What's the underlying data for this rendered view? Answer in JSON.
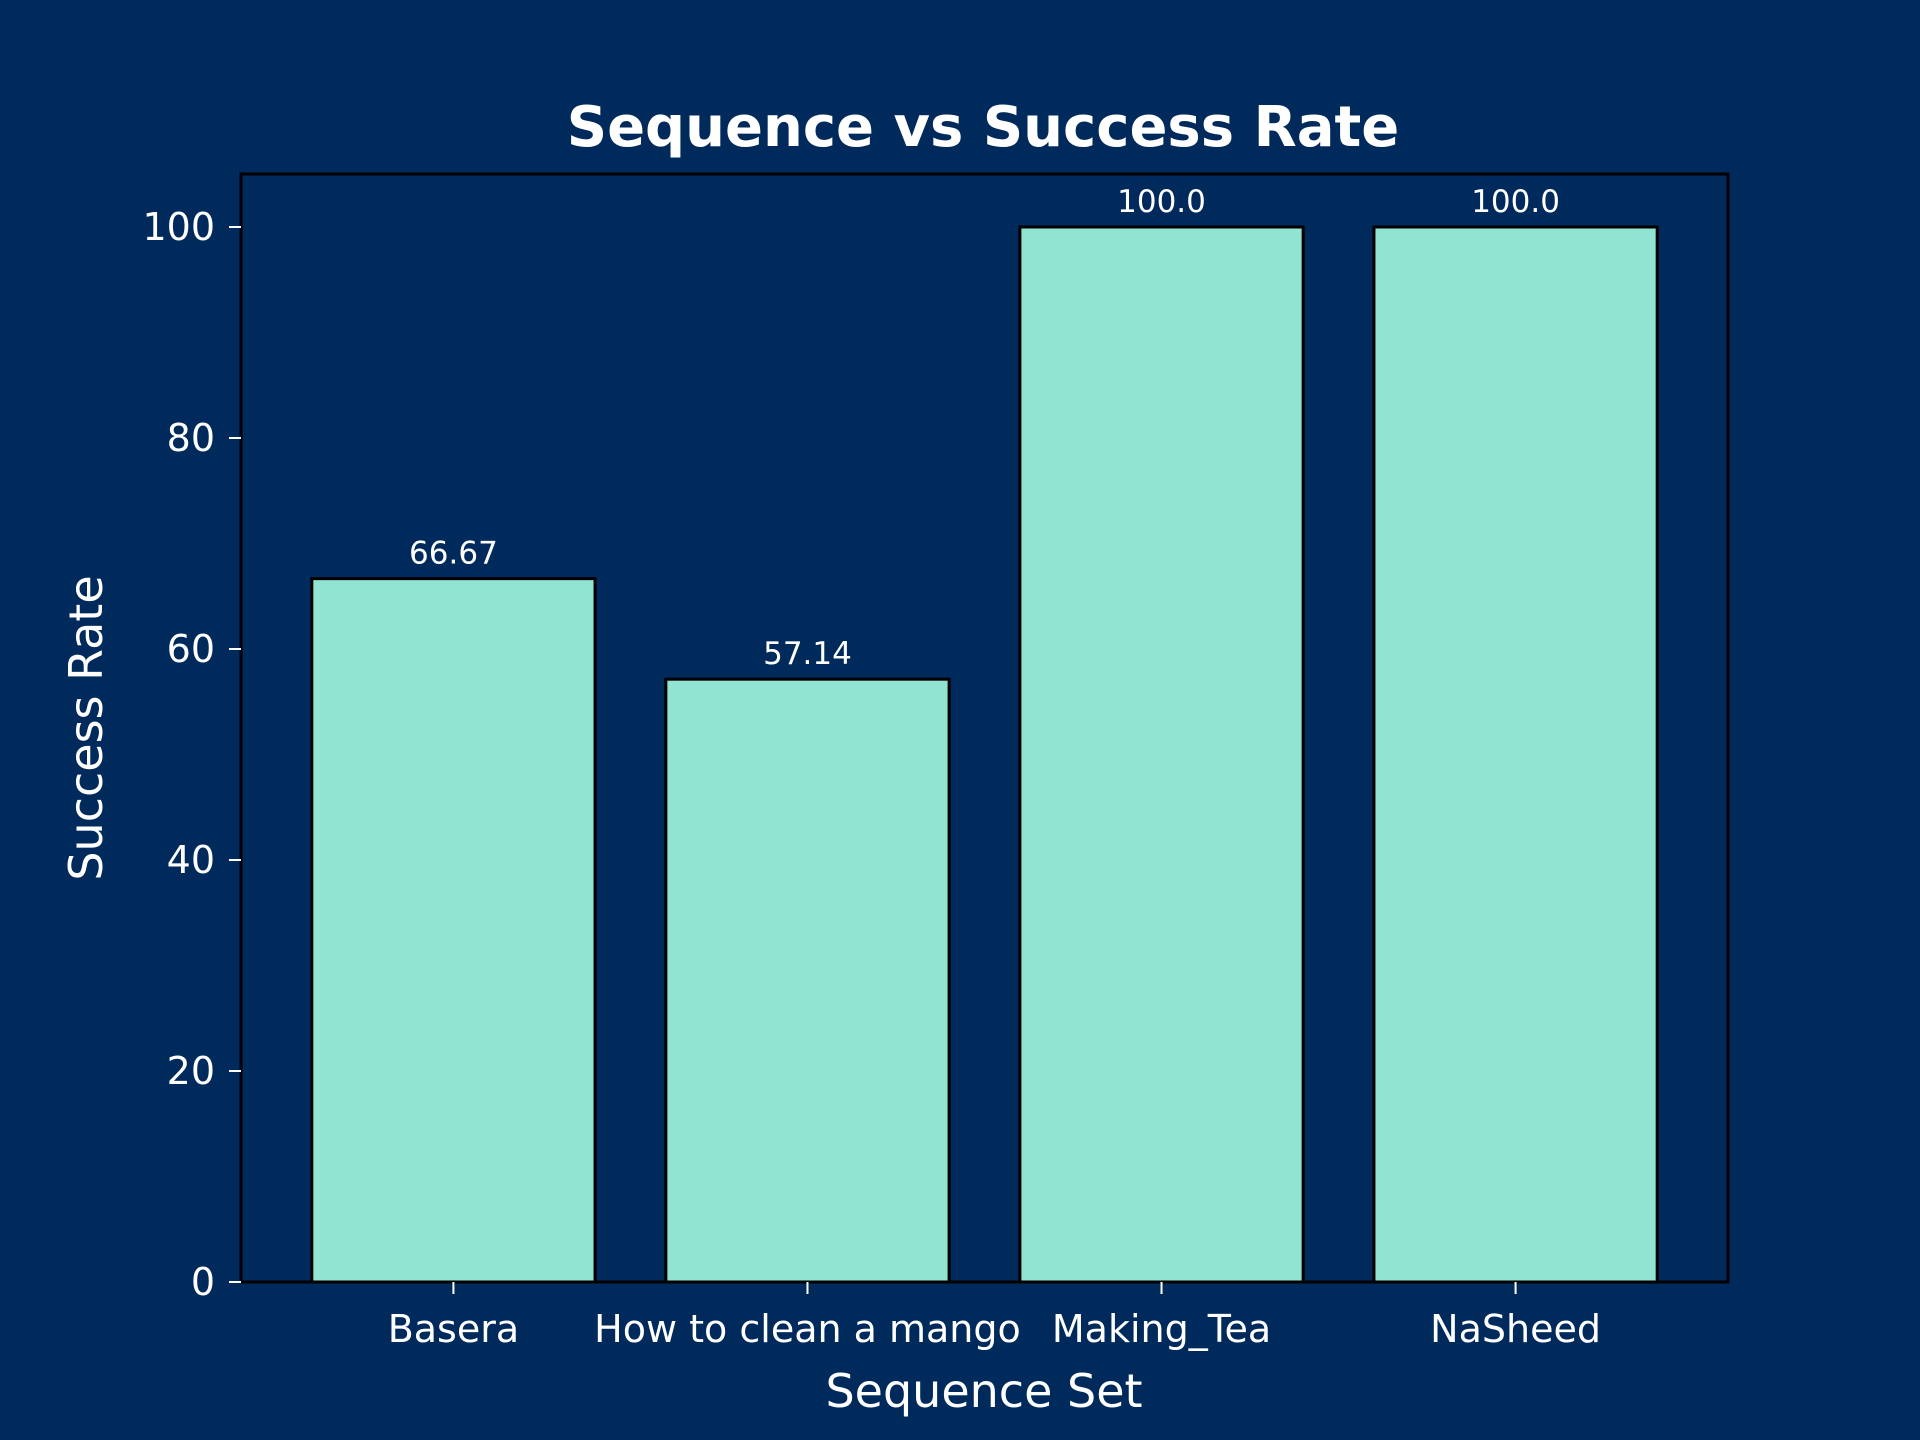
{
  "chart_data": {
    "type": "bar",
    "title": "Sequence vs Success Rate",
    "xlabel": "Sequence Set",
    "ylabel": "Success Rate",
    "categories": [
      "Basera",
      "How to clean a mango",
      "Making_Tea",
      "NaSheed"
    ],
    "values": [
      66.67,
      57.14,
      100.0,
      100.0
    ],
    "value_labels": [
      "66.67",
      "57.14",
      "100.0",
      "100.0"
    ],
    "yticks": [
      0,
      20,
      40,
      60,
      80,
      100
    ],
    "ylim": [
      0,
      105
    ],
    "grid": false,
    "legend": "none",
    "colors": {
      "background": "#002a5c",
      "bar_fill": "#91e3d2",
      "bar_edge": "#000000",
      "text": "#ffffff",
      "axes_edge": "#000000"
    }
  }
}
